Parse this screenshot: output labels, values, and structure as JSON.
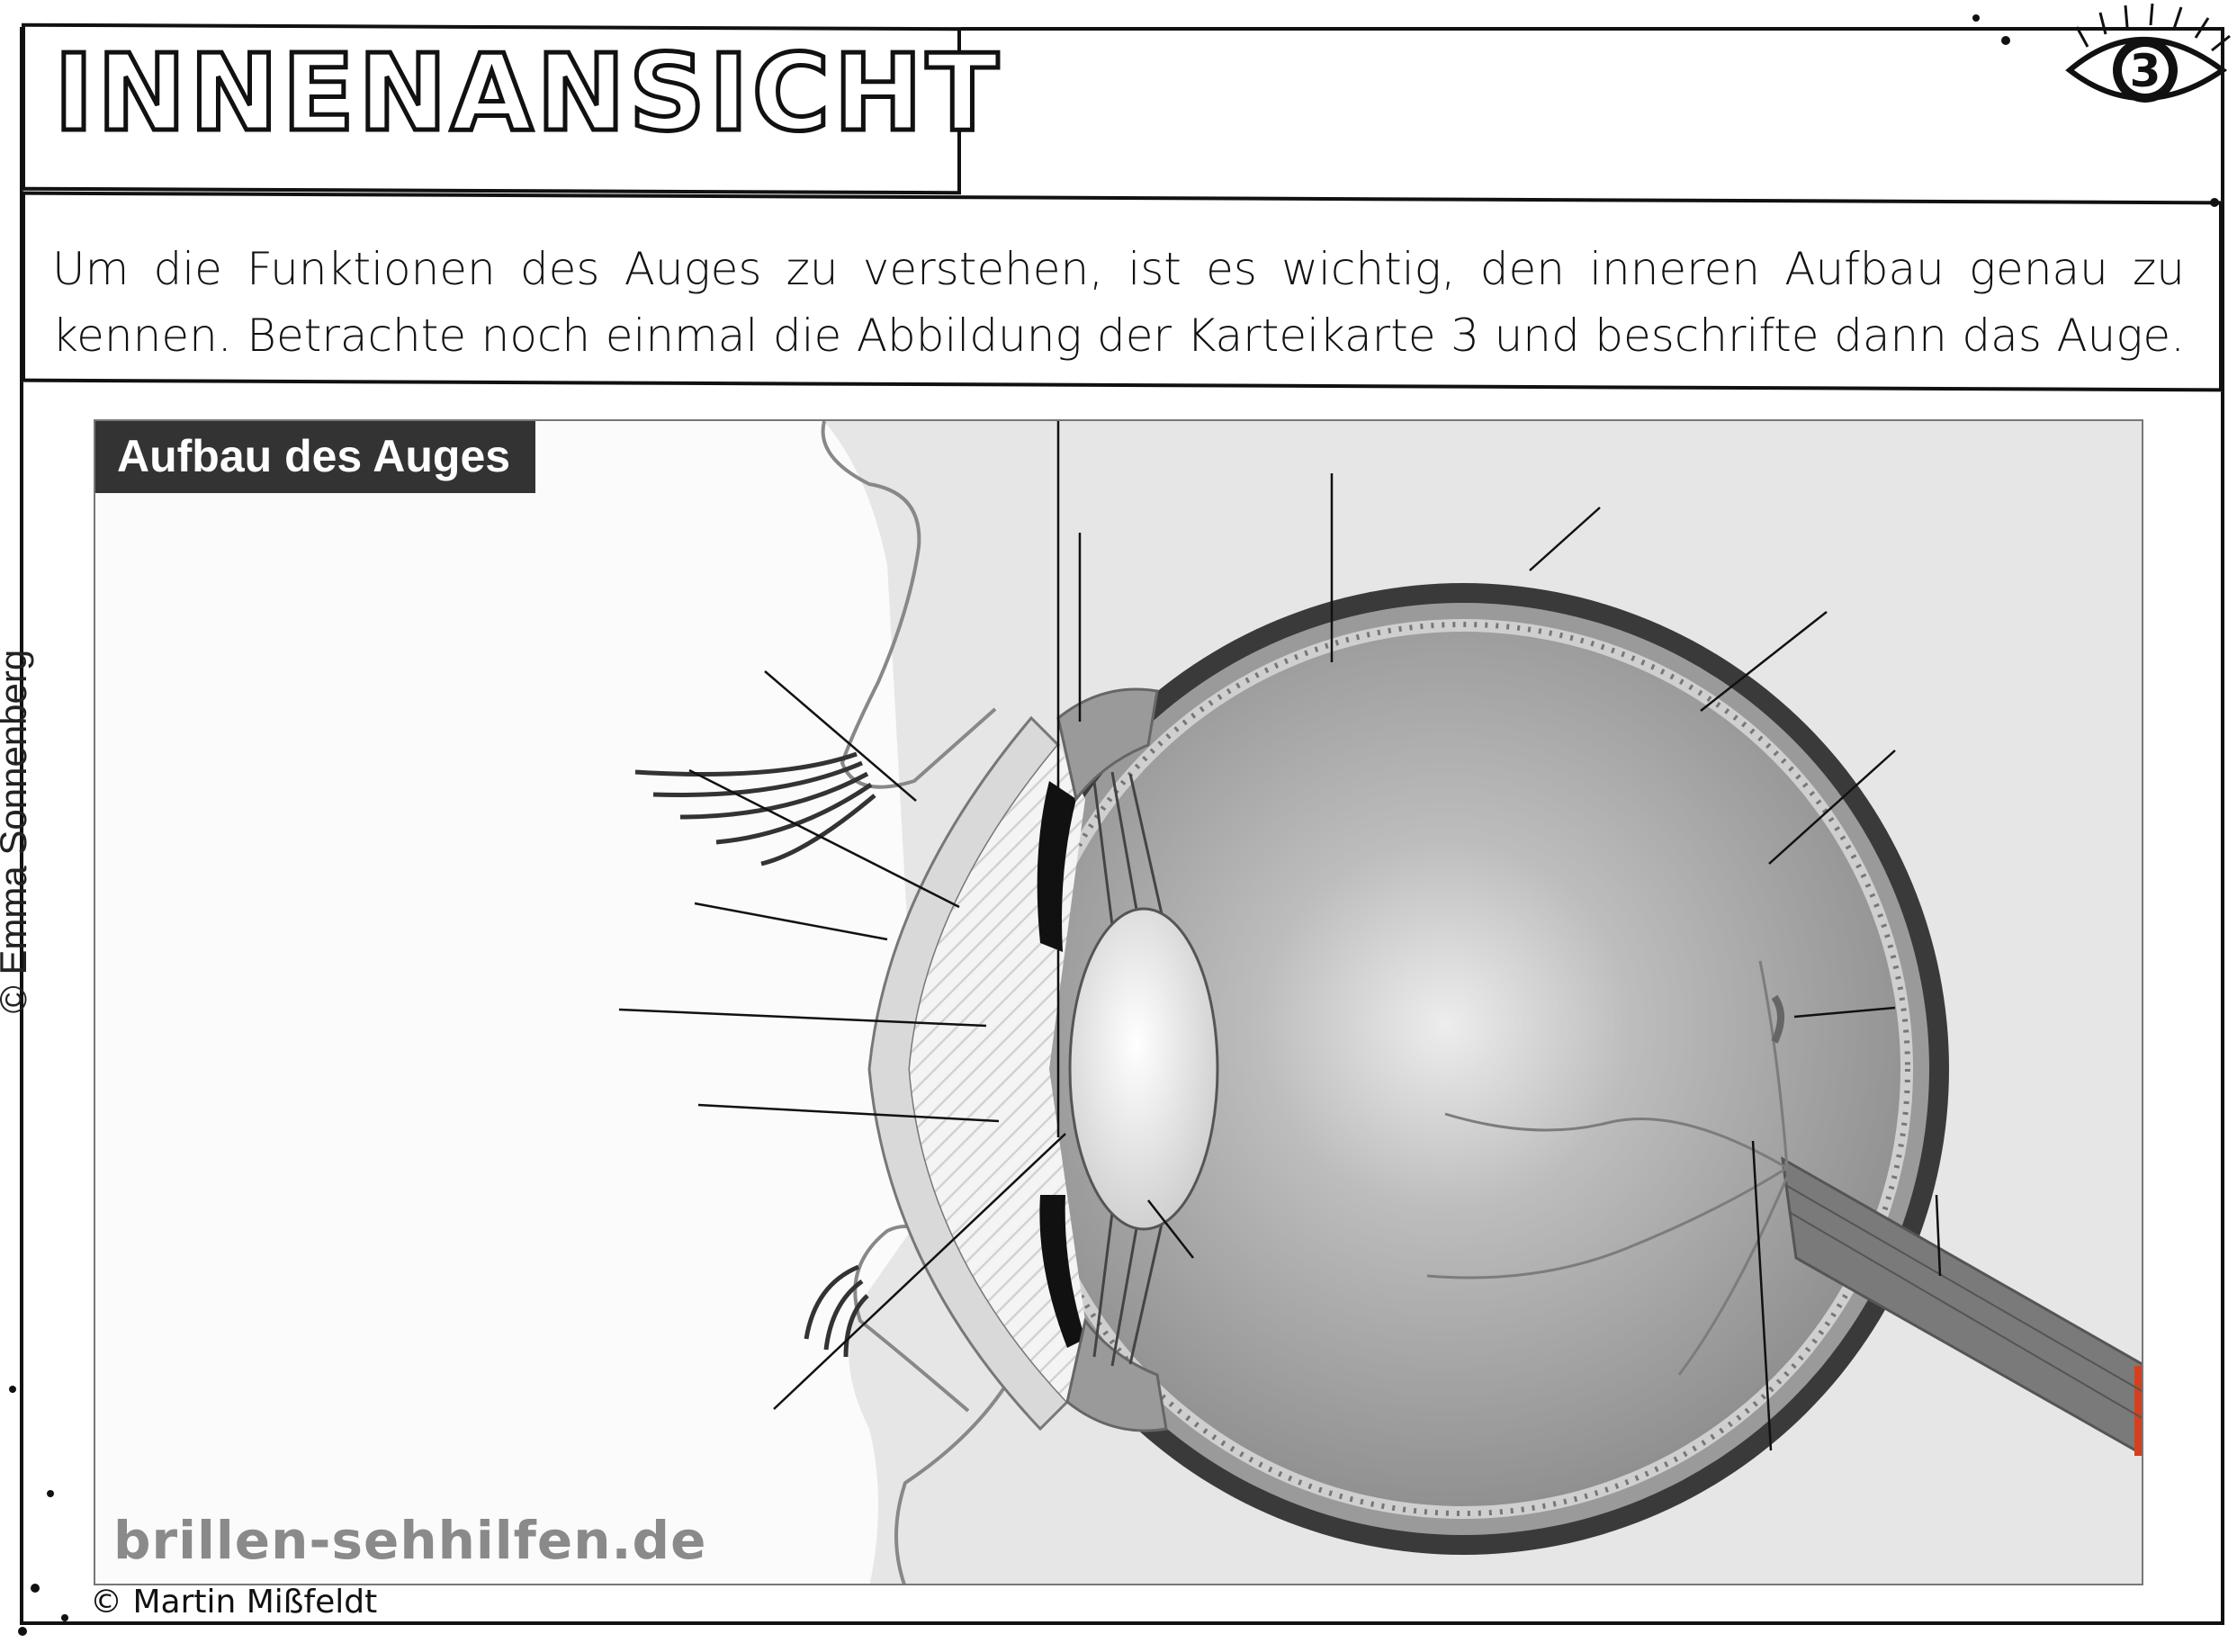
{
  "header": {
    "title": "INNENANSICHT",
    "card_number": "3",
    "badge_icon": "eye-icon"
  },
  "instructions": {
    "line1": "Um die Funktionen des Auges zu verstehen, ist es wichtig, den inneren Aufbau genau zu",
    "line2": "kennen. Betrachte noch einmal die Abbildung der Karteikarte 3 und beschrifte dann das Auge."
  },
  "figure": {
    "title": "Aufbau des Auges",
    "watermark": "brillen-sehhilfen.de",
    "label_lines": 15
  },
  "credits": {
    "side": "© Emma Sonnenberg",
    "bottom": "© Martin Mißfeldt"
  },
  "colors": {
    "ink": "#111111",
    "figure_title_bg": "#333333",
    "eyeball": "#8f8f8f",
    "accent_red": "#d6401f"
  }
}
